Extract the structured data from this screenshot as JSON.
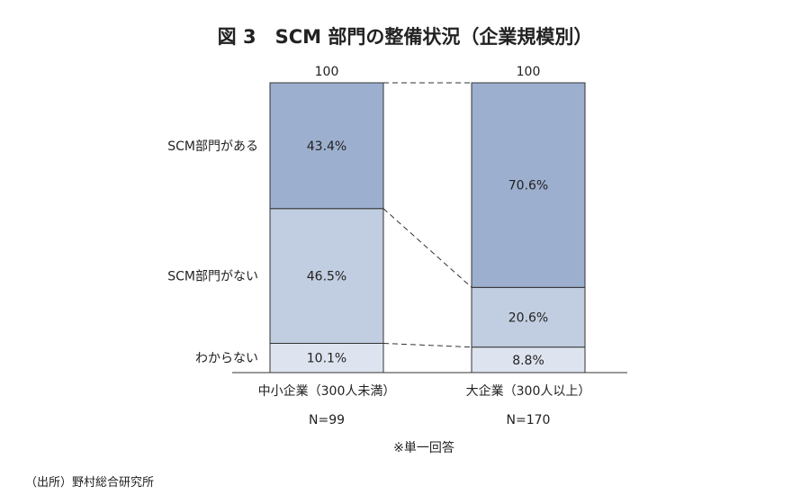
{
  "chart_data": {
    "type": "bar",
    "stacked": true,
    "percent": true,
    "title": "図 3　SCM 部門の整備状況（企業規模別）",
    "categories": [
      "中小企業（300人未満）",
      "大企業（300人以上）"
    ],
    "totals": [
      "100",
      "100"
    ],
    "n_labels": [
      "N=99",
      "N=170"
    ],
    "series": [
      {
        "name": "わからない",
        "values": [
          10.1,
          8.8
        ],
        "labels": [
          "10.1%",
          "8.8%"
        ],
        "color": "#dee4ef"
      },
      {
        "name": "SCM部門がない",
        "values": [
          46.5,
          20.6
        ],
        "labels": [
          "46.5%",
          "20.6%"
        ],
        "color": "#c1cde0"
      },
      {
        "name": "SCM部門がある",
        "values": [
          43.4,
          70.6
        ],
        "labels": [
          "43.4%",
          "70.6%"
        ],
        "color": "#9dafcf"
      }
    ],
    "ylim": [
      0,
      100
    ],
    "connector_lines": "dashed",
    "note": "※単一回答",
    "source": "（出所）野村総合研究所"
  }
}
